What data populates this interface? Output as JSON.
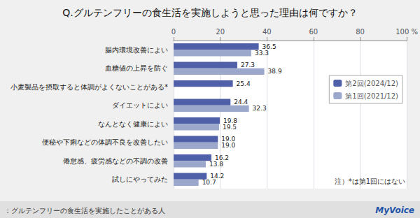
{
  "chart_data": {
    "type": "bar",
    "orientation": "horizontal",
    "title": "Q.グルテンフリーの食生活を実施しようと思った理由は何ですか？",
    "categories": [
      "腸内環境改善によい",
      "血糖値の上昇を防ぐ",
      "小麦製品を摂取すると体調がよくないことがある*",
      "ダイエットによい",
      "なんとなく健康によい",
      "便秘や下痢などの体調不良を改善したい",
      "倦怠感、疲労感などの不調の改善",
      "試しにやってみた"
    ],
    "series": [
      {
        "name": "第2回(2024/12)",
        "color": "#4f5fa8",
        "values": [
          36.5,
          27.3,
          25.4,
          24.4,
          19.8,
          19.0,
          16.2,
          14.2
        ],
        "value_labels": [
          "36.5",
          "27.3",
          "25.4",
          "24.4",
          "19.8",
          "19.0",
          "16.2",
          "14.2"
        ]
      },
      {
        "name": "第1回(2021/12)",
        "color": "#9ba8cc",
        "values": [
          33.3,
          38.9,
          null,
          32.3,
          19.5,
          19.0,
          13.8,
          10.7
        ],
        "value_labels": [
          "33.3",
          "38.9",
          null,
          "32.3",
          "19.5",
          "19.0",
          "13.8",
          "10.7"
        ]
      }
    ],
    "xlim": [
      0,
      100
    ],
    "xticks": [
      0,
      20,
      40,
      60,
      80,
      {
        "value": 100,
        "label": "100 %"
      }
    ],
    "grid": true,
    "legend": "upper right",
    "data_labels": true,
    "annotations": [
      "注）*は第1回にはない",
      "：グルテンフリーの食生活を実施したことがある人",
      "MyVoice"
    ]
  }
}
